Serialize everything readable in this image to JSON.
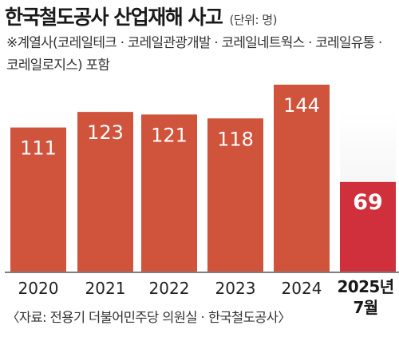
{
  "chart_data": {
    "type": "bar",
    "title": "한국철도공사 산업재해 사고",
    "unit": "(단위: 명)",
    "note": "※계열사(코레일테크 · 코레일관광개발 · 코레일네트웍스 · 코레일유통 · 코레일로지스) 포함",
    "categories": [
      "2020",
      "2021",
      "2022",
      "2023",
      "2024",
      "2025년 7월"
    ],
    "values": [
      111,
      123,
      121,
      118,
      144,
      69
    ],
    "source": "〈자료: 전용기 더불어민주당 의원실 · 한국철도공사〉",
    "ylim": [
      0,
      160
    ],
    "grid": false,
    "colors": {
      "bar": "#D0533C",
      "bar_highlight": "#D0303C",
      "value_label": "#ffffff",
      "baseline": "#555555"
    }
  }
}
